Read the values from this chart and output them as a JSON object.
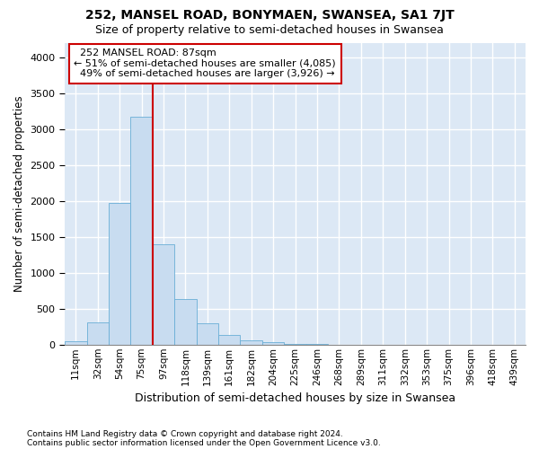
{
  "title": "252, MANSEL ROAD, BONYMAEN, SWANSEA, SA1 7JT",
  "subtitle": "Size of property relative to semi-detached houses in Swansea",
  "xlabel": "Distribution of semi-detached houses by size in Swansea",
  "ylabel": "Number of semi-detached properties",
  "footnote1": "Contains HM Land Registry data © Crown copyright and database right 2024.",
  "footnote2": "Contains public sector information licensed under the Open Government Licence v3.0.",
  "property_label": "252 MANSEL ROAD: 87sqm",
  "pct_smaller": 51,
  "n_smaller": 4085,
  "pct_larger": 49,
  "n_larger": 3926,
  "bar_color": "#c8dcf0",
  "bar_edge_color": "#6aaed6",
  "vline_color": "#cc0000",
  "background_color": "#dce8f5",
  "ann_box_edge": "#cc0000",
  "categories": [
    "11sqm",
    "32sqm",
    "54sqm",
    "75sqm",
    "97sqm",
    "118sqm",
    "139sqm",
    "161sqm",
    "182sqm",
    "204sqm",
    "225sqm",
    "246sqm",
    "268sqm",
    "289sqm",
    "311sqm",
    "332sqm",
    "353sqm",
    "375sqm",
    "396sqm",
    "418sqm",
    "439sqm"
  ],
  "values": [
    50,
    310,
    1975,
    3175,
    1400,
    640,
    300,
    130,
    60,
    30,
    10,
    5,
    0,
    0,
    0,
    0,
    0,
    0,
    0,
    0,
    0
  ],
  "vline_x": 3.5,
  "ylim": [
    0,
    4200
  ],
  "yticks": [
    0,
    500,
    1000,
    1500,
    2000,
    2500,
    3000,
    3500,
    4000
  ],
  "ann_line1": "252 MANSEL ROAD: 87sqm",
  "ann_line2": "← 51% of semi-detached houses are smaller (4,085)",
  "ann_line3": "49% of semi-detached houses are larger (3,926) →"
}
